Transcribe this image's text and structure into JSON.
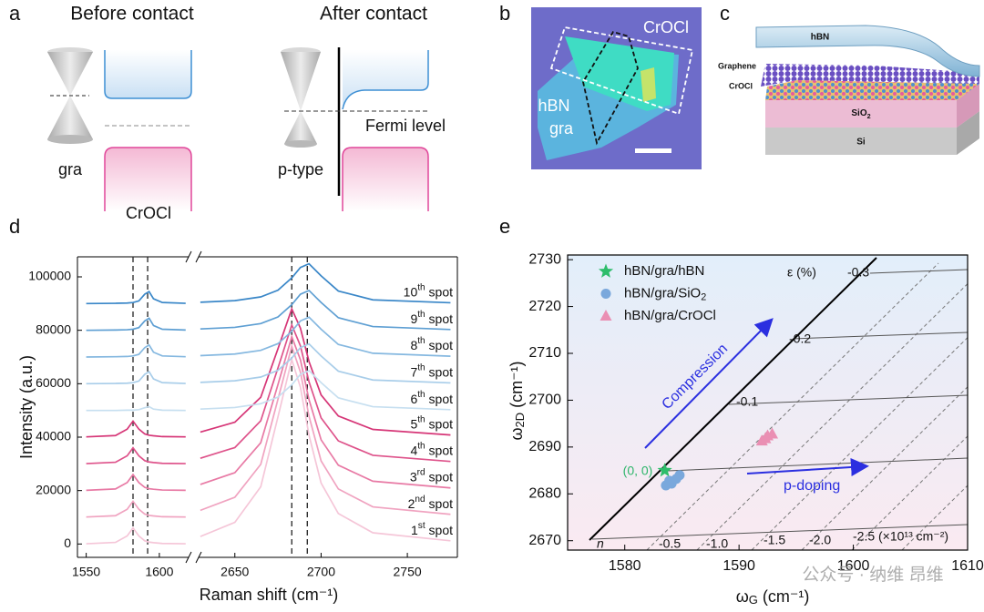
{
  "panel_labels": [
    "a",
    "b",
    "c",
    "d",
    "e"
  ],
  "panel_a": {
    "before_title": "Before contact",
    "after_title": "After contact",
    "gra_label": "gra",
    "crocl_label": "CrOCl",
    "p_type_label": "p-type",
    "fermi_label": "Fermi level"
  },
  "panel_b": {
    "crocl_label": "CrOCl",
    "hbn_label": "hBN",
    "gra_label": "gra"
  },
  "panel_c": {
    "layers": [
      "hBN",
      "Graphene",
      "CrOCl",
      "SiO2",
      "Si"
    ]
  },
  "watermark": "公众号 · 纳维 昂维",
  "chart_data": [
    {
      "type": "line",
      "x_label": "Raman shift (cm⁻¹)",
      "y_label": "Intensity (a.u.)",
      "x": [
        1550,
        1570,
        1578,
        1582,
        1586,
        1590,
        1593,
        1596,
        1602,
        1618,
        2630,
        2650,
        2665,
        2675,
        2683,
        2688,
        2693,
        2700,
        2710,
        2730,
        2775
      ],
      "xlim": [
        [
          1544,
          1620
        ],
        [
          2629,
          2779
        ]
      ],
      "xticks": [
        1550,
        1600,
        2650,
        2700,
        2750
      ],
      "ylim": [
        -5000,
        107500
      ],
      "yticks": [
        0,
        20000,
        40000,
        60000,
        80000,
        100000
      ],
      "reference_lines": [
        1582,
        1592,
        2683,
        2692
      ],
      "series": [
        {
          "name": "1st spot",
          "color": "#f5c6d8",
          "values": [
            100,
            600,
            3000,
            6000,
            3000,
            1200,
            700,
            500,
            200,
            100,
            2800,
            8100,
            21400,
            47600,
            69000,
            58700,
            40700,
            22800,
            11400,
            4200,
            1200
          ]
        },
        {
          "name": "2nd spot",
          "color": "#f0a3c0",
          "values": [
            10100,
            10600,
            13000,
            16000,
            13000,
            11200,
            10700,
            10500,
            10200,
            10100,
            12600,
            17500,
            29800,
            54200,
            74000,
            64400,
            47800,
            31100,
            20600,
            13900,
            11100
          ]
        },
        {
          "name": "3rd spot",
          "color": "#e87aa5",
          "values": [
            20100,
            20600,
            23000,
            26000,
            23000,
            21200,
            20700,
            20500,
            20200,
            20100,
            22300,
            26700,
            37900,
            59700,
            77600,
            69000,
            54000,
            39000,
            29500,
            23500,
            21000
          ]
        },
        {
          "name": "4th spot",
          "color": "#de528a",
          "values": [
            30100,
            30600,
            33000,
            36000,
            33000,
            31200,
            30700,
            30500,
            30200,
            30100,
            32100,
            36100,
            46100,
            65900,
            82000,
            74200,
            60700,
            47200,
            38600,
            33200,
            30900
          ]
        },
        {
          "name": "5th spot",
          "color": "#d63677",
          "values": [
            40100,
            40600,
            43000,
            46000,
            43000,
            41200,
            40700,
            40500,
            40200,
            40100,
            41900,
            45600,
            54900,
            73100,
            88000,
            80800,
            68300,
            55800,
            47900,
            42900,
            40800
          ]
        },
        {
          "name": "6th spot",
          "color": "#c6dff0",
          "values": [
            50000,
            50000,
            50100,
            50100,
            50300,
            51000,
            51400,
            50500,
            50100,
            50000,
            50500,
            51100,
            52500,
            55000,
            59600,
            63500,
            64900,
            60400,
            54700,
            51400,
            50300
          ]
        },
        {
          "name": "7th spot",
          "color": "#a8cde9",
          "values": [
            60000,
            60100,
            60200,
            60400,
            61000,
            63500,
            64500,
            61800,
            60400,
            60100,
            60500,
            61100,
            62500,
            65000,
            69600,
            73500,
            74900,
            70400,
            64700,
            61400,
            60300
          ]
        },
        {
          "name": "8th spot",
          "color": "#85b8e0",
          "values": [
            70000,
            70100,
            70200,
            70400,
            71000,
            73500,
            74500,
            71800,
            70400,
            70100,
            70500,
            71100,
            72500,
            75000,
            79600,
            83500,
            84900,
            80400,
            74700,
            71400,
            70300
          ]
        },
        {
          "name": "9th spot",
          "color": "#5e9fd3",
          "values": [
            80000,
            80100,
            80200,
            80400,
            81000,
            83500,
            84500,
            81800,
            80400,
            80100,
            80500,
            81100,
            82500,
            85000,
            89600,
            93500,
            94900,
            90400,
            84700,
            81400,
            80300
          ]
        },
        {
          "name": "10th spot",
          "color": "#3a87c8",
          "values": [
            90000,
            90100,
            90200,
            90400,
            91000,
            93500,
            94500,
            91800,
            90400,
            90100,
            90500,
            91100,
            92500,
            95000,
            99600,
            103500,
            104900,
            100400,
            94700,
            91400,
            90300
          ]
        }
      ]
    },
    {
      "type": "scatter",
      "x_label": "ωG (cm⁻¹)",
      "y_label": "ω2D (cm⁻¹)",
      "xlim": [
        1575,
        1610
      ],
      "xticks": [
        1580,
        1590,
        1600,
        1610
      ],
      "ylim": [
        2668,
        2731
      ],
      "yticks": [
        2670,
        2680,
        2690,
        2700,
        2710,
        2720,
        2730
      ],
      "legend": "upper left",
      "series": [
        {
          "name": "hBN/gra/hBN",
          "color": "#2ebd6b",
          "marker": "star",
          "x": [
            1583.5
          ],
          "y": [
            2685
          ]
        },
        {
          "name": "hBN/gra/SiO2",
          "color": "#7aa8dc",
          "marker": "circle",
          "x": [
            1583.6,
            1584.1,
            1584.5,
            1584.8,
            1583.9
          ],
          "y": [
            2681.8,
            2682.2,
            2683.2,
            2684.0,
            2682.8
          ]
        },
        {
          "name": "hBN/gra/CrOCl",
          "color": "#ea8fb3",
          "marker": "triangle",
          "x": [
            1592.0,
            1592.5,
            1592.9,
            1592.3
          ],
          "y": [
            2691.3,
            2692.4,
            2692.8,
            2691.8
          ]
        }
      ],
      "annotations": {
        "strain_axis": "ε (%)",
        "strain_labels": [
          "-0.3",
          "-0.2",
          "-0.1"
        ],
        "origin": "(0, 0)",
        "compression": "Compression",
        "p_doping": "p-doping",
        "n_label": "n",
        "doping_labels": [
          "-0.5",
          "-1.0",
          "-1.5",
          "-2.0",
          "-2.5 (×10¹³ cm⁻²)"
        ]
      }
    }
  ]
}
